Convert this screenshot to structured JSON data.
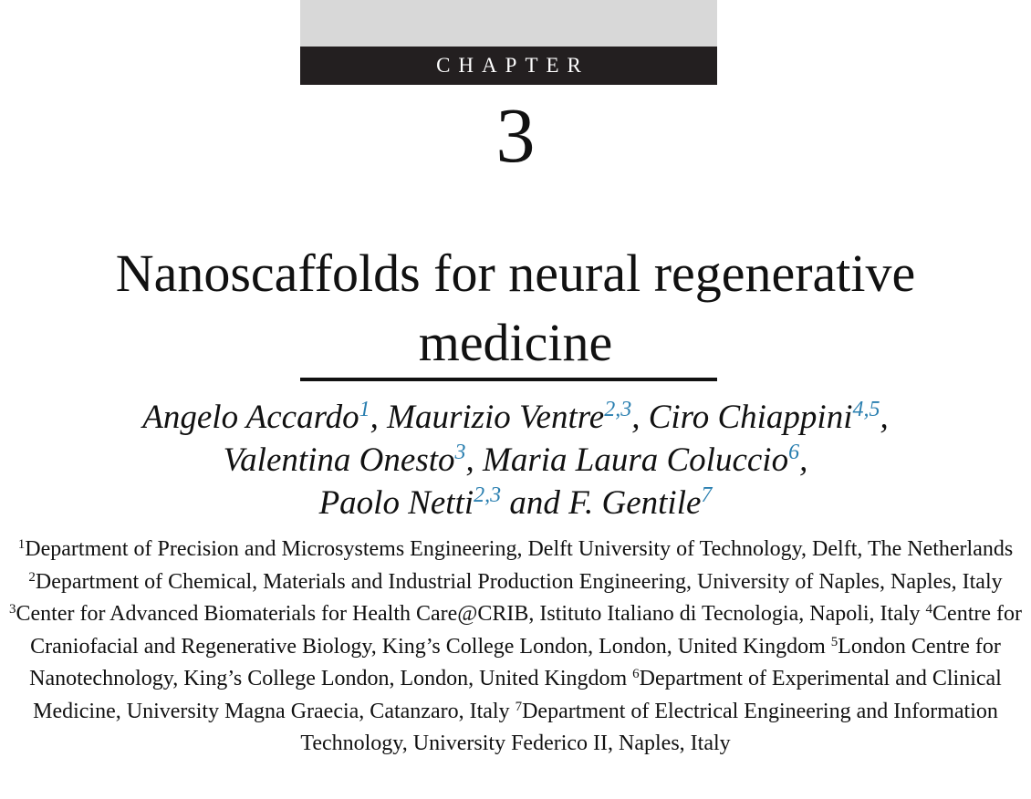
{
  "chapter": {
    "label": "CHAPTER",
    "number": "3"
  },
  "title": {
    "line1": "Nanoscaffolds for neural regenerative",
    "line2": "medicine"
  },
  "authors": [
    {
      "name": "Angelo Accardo",
      "marks": "1",
      "sep": ", "
    },
    {
      "name": "Maurizio Ventre",
      "marks": "2,3",
      "sep": ", "
    },
    {
      "name": "Ciro Chiappini",
      "marks": "4,5",
      "sep": ","
    },
    {
      "name": "Valentina Onesto",
      "marks": "3",
      "sep": ", "
    },
    {
      "name": "Maria Laura Coluccio",
      "marks": "6",
      "sep": ","
    },
    {
      "name": "Paolo Netti",
      "marks": "2,3",
      "sep": " and "
    },
    {
      "name": "F. Gentile",
      "marks": "7",
      "sep": ""
    }
  ],
  "affiliations": [
    {
      "num": "1",
      "text": "Department of Precision and Microsystems Engineering, Delft University of Technology, Delft, The Netherlands"
    },
    {
      "num": "2",
      "text": "Department of Chemical, Materials and Industrial Production Engineering, University of Naples, Naples, Italy"
    },
    {
      "num": "3",
      "text": "Center for Advanced Biomaterials for Health Care@CRIB, Istituto Italiano di Tecnologia, Napoli, Italy"
    },
    {
      "num": "4",
      "text": "Centre for Craniofacial and Regenerative Biology, King’s College London, London, United Kingdom"
    },
    {
      "num": "5",
      "text": "London Centre for Nanotechnology, King’s College London, London, United Kingdom"
    },
    {
      "num": "6",
      "text": "Department of Experimental and Clinical Medicine, University Magna Graecia, Catanzaro, Italy"
    },
    {
      "num": "7",
      "text": "Department of Electrical Engineering and Information Technology, University Federico II, Naples, Italy"
    }
  ],
  "colors": {
    "band": "#231f20",
    "band_top": "#d8d8d8",
    "superscript": "#2a7fb0"
  }
}
